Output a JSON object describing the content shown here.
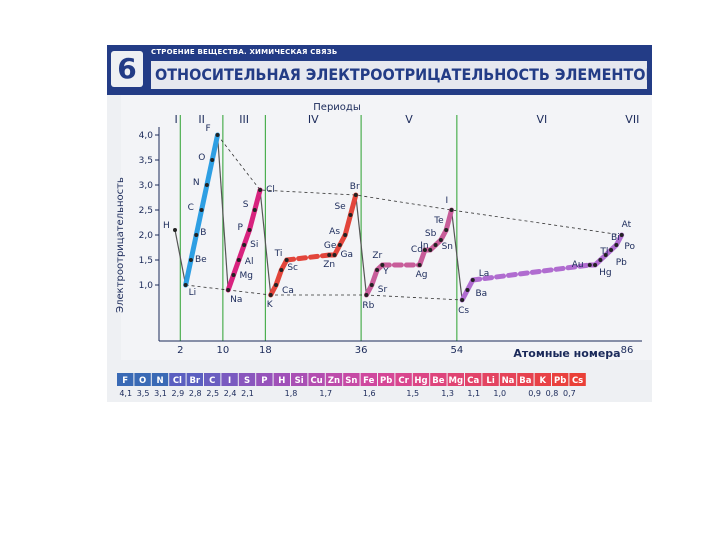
{
  "header": {
    "number": "6",
    "kicker": "СТРОЕНИЕ ВЕЩЕСТВА. ХИМИЧЕСКАЯ СВЯЗЬ",
    "title": "ОТНОСИТЕЛЬНАЯ ЭЛЕКТРООТРИЦАТЕЛЬНОСТЬ ЭЛЕМЕНТОВ"
  },
  "chart_data": {
    "type": "line",
    "title": "",
    "xlabel": "Атомные номера",
    "ylabel": "Электроотрицательность",
    "top_axis_label": "Периоды",
    "ylim": [
      0,
      4.2
    ],
    "yticks": [
      "1,0",
      "1,5",
      "2,0",
      "2,5",
      "3,0",
      "3,5",
      "4,0"
    ],
    "ytick_values": [
      1.0,
      1.5,
      2.0,
      2.5,
      3.0,
      3.5,
      4.0
    ],
    "xticks": [
      "2",
      "10",
      "18",
      "36",
      "54",
      "86"
    ],
    "xtick_values": [
      2,
      10,
      18,
      36,
      54,
      86
    ],
    "periods": [
      "I",
      "II",
      "III",
      "IV",
      "V",
      "VI",
      "VII"
    ],
    "series": [
      {
        "color": "#2e9fe3",
        "points": [
          {
            "el": "Li",
            "z": 3,
            "en": 1.0
          },
          {
            "el": "Be",
            "z": 4,
            "en": 1.5
          },
          {
            "el": "B",
            "z": 5,
            "en": 2.0
          },
          {
            "el": "C",
            "z": 6,
            "en": 2.5
          },
          {
            "el": "N",
            "z": 7,
            "en": 3.0
          },
          {
            "el": "O",
            "z": 8,
            "en": 3.5
          },
          {
            "el": "F",
            "z": 9,
            "en": 4.0
          }
        ]
      },
      {
        "color": "#d8237f",
        "points": [
          {
            "el": "Na",
            "z": 11,
            "en": 0.9
          },
          {
            "el": "Mg",
            "z": 12,
            "en": 1.2
          },
          {
            "el": "Al",
            "z": 13,
            "en": 1.5
          },
          {
            "el": "Si",
            "z": 14,
            "en": 1.8
          },
          {
            "el": "P",
            "z": 15,
            "en": 2.1
          },
          {
            "el": "S",
            "z": 16,
            "en": 2.5
          },
          {
            "el": "Cl",
            "z": 17,
            "en": 2.9
          }
        ]
      },
      {
        "color": "#e2453b",
        "points": [
          {
            "el": "K",
            "z": 19,
            "en": 0.8
          },
          {
            "el": "Ca",
            "z": 20,
            "en": 1.0
          },
          {
            "el": "Sc",
            "z": 21,
            "en": 1.3
          },
          {
            "el": "Ti",
            "z": 22,
            "en": 1.5
          },
          {
            "el": "Zn",
            "z": 30,
            "en": 1.6
          },
          {
            "el": "Ga",
            "z": 31,
            "en": 1.6
          },
          {
            "el": "Ge",
            "z": 32,
            "en": 1.8
          },
          {
            "el": "As",
            "z": 33,
            "en": 2.0
          },
          {
            "el": "Se",
            "z": 34,
            "en": 2.4
          },
          {
            "el": "Br",
            "z": 35,
            "en": 2.8
          }
        ]
      },
      {
        "color": "#c85d9a",
        "points": [
          {
            "el": "Rb",
            "z": 37,
            "en": 0.8
          },
          {
            "el": "Sr",
            "z": 38,
            "en": 1.0
          },
          {
            "el": "Y",
            "z": 39,
            "en": 1.3
          },
          {
            "el": "Zr",
            "z": 40,
            "en": 1.4
          },
          {
            "el": "Ag",
            "z": 47,
            "en": 1.4
          },
          {
            "el": "Cd",
            "z": 48,
            "en": 1.7
          },
          {
            "el": "In",
            "z": 49,
            "en": 1.7
          },
          {
            "el": "Sn",
            "z": 50,
            "en": 1.8
          },
          {
            "el": "Sb",
            "z": 51,
            "en": 1.9
          },
          {
            "el": "Te",
            "z": 52,
            "en": 2.1
          },
          {
            "el": "I",
            "z": 53,
            "en": 2.5
          }
        ]
      },
      {
        "color": "#b06cd0",
        "points": [
          {
            "el": "Cs",
            "z": 55,
            "en": 0.7
          },
          {
            "el": "Ba",
            "z": 56,
            "en": 0.9
          },
          {
            "el": "La",
            "z": 57,
            "en": 1.1
          },
          {
            "el": "Au",
            "z": 79,
            "en": 1.4
          },
          {
            "el": "Hg",
            "z": 80,
            "en": 1.4
          },
          {
            "el": "Tl",
            "z": 81,
            "en": 1.5
          },
          {
            "el": "Pb",
            "z": 82,
            "en": 1.6
          },
          {
            "el": "Bi",
            "z": 83,
            "en": 1.7
          },
          {
            "el": "Po",
            "z": 84,
            "en": 1.8
          },
          {
            "el": "At",
            "z": 85,
            "en": 2.0
          }
        ]
      },
      {
        "color": "#3a6ab5",
        "points": [
          {
            "el": "H",
            "z": 1,
            "en": 2.1
          }
        ]
      }
    ],
    "grid": false,
    "legend": "none"
  },
  "strip": {
    "elements": [
      {
        "sym": "F",
        "color": "#3a6ab5"
      },
      {
        "sym": "O",
        "color": "#3a6ab5"
      },
      {
        "sym": "N",
        "color": "#3a6ab5"
      },
      {
        "sym": "Cl",
        "color": "#5b5fc0"
      },
      {
        "sym": "Br",
        "color": "#5b5fc0"
      },
      {
        "sym": "C",
        "color": "#6a5ec0"
      },
      {
        "sym": "I",
        "color": "#7a5ac0"
      },
      {
        "sym": "S",
        "color": "#8a56bd"
      },
      {
        "sym": "P",
        "color": "#9653bb"
      },
      {
        "sym": "H",
        "color": "#a050b8"
      },
      {
        "sym": "Si",
        "color": "#a950b4"
      },
      {
        "sym": "Cu",
        "color": "#b34eb0"
      },
      {
        "sym": "Zn",
        "color": "#bd4cab"
      },
      {
        "sym": "Sn",
        "color": "#c64aa5"
      },
      {
        "sym": "Fe",
        "color": "#cf489e"
      },
      {
        "sym": "Pb",
        "color": "#d54796"
      },
      {
        "sym": "Cr",
        "color": "#d9468e"
      },
      {
        "sym": "Hg",
        "color": "#dc4685"
      },
      {
        "sym": "Be",
        "color": "#de457c"
      },
      {
        "sym": "Mg",
        "color": "#e04573"
      },
      {
        "sym": "Ca",
        "color": "#e2446a"
      },
      {
        "sym": "Li",
        "color": "#e34461"
      },
      {
        "sym": "Na",
        "color": "#e54358"
      },
      {
        "sym": "Ba",
        "color": "#e6424f"
      },
      {
        "sym": "K",
        "color": "#e84146"
      },
      {
        "sym": "Pb",
        "color": "#e9413e"
      },
      {
        "sym": "Cs",
        "color": "#ea4037"
      }
    ],
    "values": [
      "4,1",
      "3,5",
      "3,1",
      "2,9",
      "2,8",
      "2,5",
      "2,4",
      "2,1",
      "1,8",
      "1,7",
      "1,6",
      "1,5",
      "1,3",
      "1,1",
      "1,0",
      "0,9",
      "0,8",
      "0,7"
    ]
  }
}
